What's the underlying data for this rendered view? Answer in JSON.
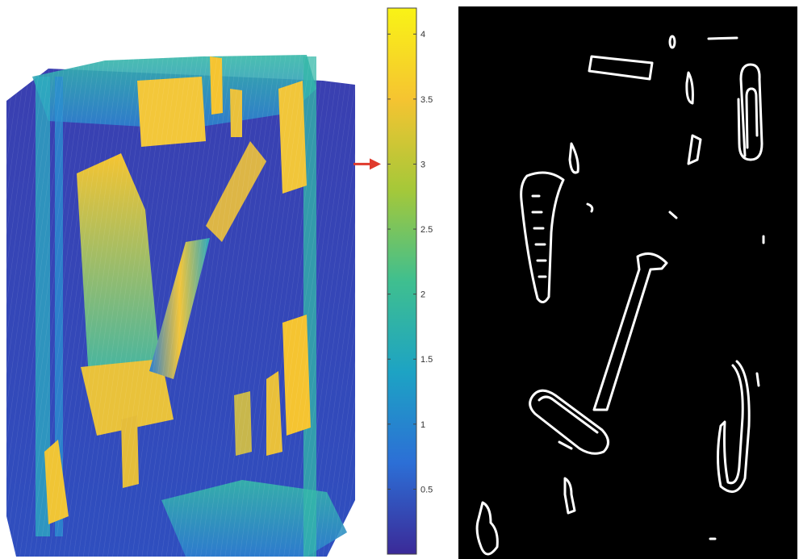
{
  "colorbar": {
    "ticks": [
      {
        "value": 0.5,
        "label": "0.5"
      },
      {
        "value": 1,
        "label": "1"
      },
      {
        "value": 1.5,
        "label": "1.5"
      },
      {
        "value": 2,
        "label": "2"
      },
      {
        "value": 2.5,
        "label": "2.5"
      },
      {
        "value": 3,
        "label": "3"
      },
      {
        "value": 3.5,
        "label": "3.5"
      },
      {
        "value": 4,
        "label": "4"
      }
    ],
    "range": [
      0,
      4.2
    ],
    "colors": [
      "#3b2a98",
      "#2c6fd6",
      "#1da3c4",
      "#3fbf8f",
      "#a5c839",
      "#f5c431",
      "#f9f316"
    ],
    "indicator_value": 3,
    "indicator_color": "#e03a2c"
  },
  "panels": {
    "surface": {
      "name": "3d-surface-plot"
    },
    "edges": {
      "name": "edge-detection-image",
      "background": "#000000",
      "stroke": "#ffffff"
    }
  }
}
